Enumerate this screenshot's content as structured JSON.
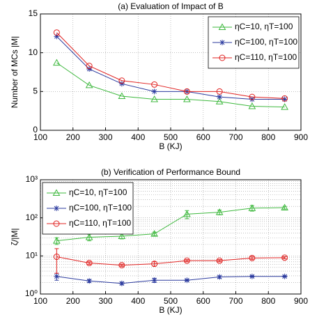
{
  "chart_data": [
    {
      "type": "line",
      "title": "(a) Evaluation of Impact of B",
      "xlabel": "B (KJ)",
      "ylabel": "Number of MCs |M|",
      "x": [
        150,
        250,
        350,
        450,
        550,
        650,
        750,
        850
      ],
      "xlim": [
        100,
        900
      ],
      "xticks": [
        100,
        200,
        300,
        400,
        500,
        600,
        700,
        800,
        900
      ],
      "ylim": [
        0,
        15
      ],
      "yticks": [
        0,
        5,
        10,
        15
      ],
      "grid": true,
      "legend": "upper right",
      "series": [
        {
          "name": "ηC=10, ηT=100",
          "color": "#3db83d",
          "marker": "triangle",
          "values": [
            8.7,
            5.8,
            4.4,
            4.0,
            4.0,
            3.7,
            3.1,
            3.0
          ]
        },
        {
          "name": "ηC=100, ηT=100",
          "color": "#2b3a9e",
          "marker": "star",
          "values": [
            12.1,
            7.9,
            6.0,
            5.0,
            5.0,
            4.3,
            4.0,
            4.0
          ]
        },
        {
          "name": "ηC=110, ηT=100",
          "color": "#e0201f",
          "marker": "circle",
          "values": [
            12.6,
            8.3,
            6.4,
            5.9,
            5.0,
            5.0,
            4.3,
            4.1
          ]
        }
      ]
    },
    {
      "type": "line",
      "title": "(b) Verification of Performance Bound",
      "xlabel": "B (KJ)",
      "ylabel": "ζ/|M|",
      "x": [
        150,
        250,
        350,
        450,
        550,
        650,
        750,
        850
      ],
      "xlim": [
        100,
        900
      ],
      "xticks": [
        100,
        200,
        300,
        400,
        500,
        600,
        700,
        800,
        900
      ],
      "ylim": [
        1,
        1000
      ],
      "log_y": true,
      "yticks": [
        {
          "value": 1,
          "label": "10⁰"
        },
        {
          "value": 10,
          "label": "10¹"
        },
        {
          "value": 100,
          "label": "10²"
        },
        {
          "value": 1000,
          "label": "10³"
        }
      ],
      "grid": true,
      "legend": "upper left",
      "series": [
        {
          "name": "ηC=10, ηT=100",
          "color": "#3db83d",
          "marker": "triangle",
          "values": [
            25,
            31,
            33,
            38,
            125,
            140,
            180,
            185
          ],
          "errors": [
            5,
            6,
            5,
            4,
            30,
            20,
            30,
            15
          ]
        },
        {
          "name": "ηC=100, ηT=100",
          "color": "#2b3a9e",
          "marker": "star",
          "values": [
            2.9,
            2.2,
            1.9,
            2.3,
            2.3,
            2.8,
            2.9,
            2.9
          ],
          "errors": [
            0.6,
            0.2,
            0.15,
            0.3,
            0.1,
            0.2,
            0.1,
            0.1
          ]
        },
        {
          "name": "ηC=110, ηT=100",
          "color": "#e0201f",
          "marker": "circle",
          "values": [
            9.5,
            6.5,
            5.7,
            6.2,
            7.5,
            7.5,
            8.8,
            9.0
          ],
          "errors": [
            6,
            0.5,
            0.4,
            0.8,
            0.5,
            0.5,
            0.8,
            0.5
          ]
        }
      ]
    }
  ]
}
